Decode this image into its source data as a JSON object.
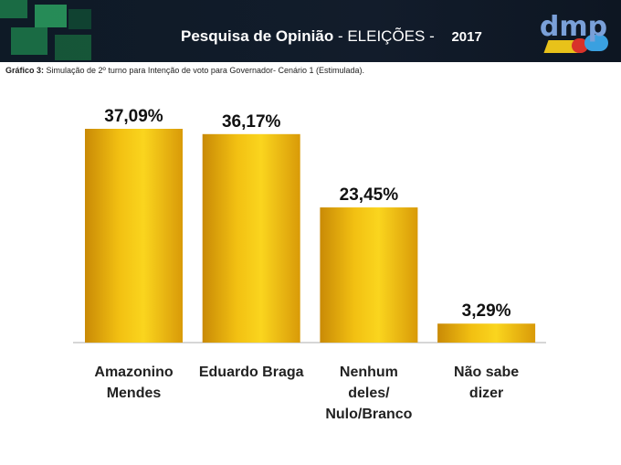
{
  "header": {
    "title_bold": "Pesquisa de Opinião",
    "title_rest": " - ELEIÇÕES - ",
    "year": "2017",
    "logo": "dmp"
  },
  "caption": {
    "label": "Gráfico 3:",
    "text": " Simulação de 2º turno para Intenção de voto para Governador- Cenário 1 (Estimulada)."
  },
  "colors": {
    "bar_light": "#f9d21a",
    "bar_dark": "#c98a06",
    "header": "#111b29"
  },
  "chart_data": {
    "type": "bar",
    "title": "Simulação de 2º turno para Intenção de voto para Governador- Cenário 1 (Estimulada)",
    "categories": [
      [
        "Amazonino",
        "Mendes"
      ],
      [
        "Eduardo Braga"
      ],
      [
        "Nenhum",
        "deles/",
        "Nulo/Branco"
      ],
      [
        "Não sabe",
        "dizer"
      ]
    ],
    "values": [
      37.09,
      36.17,
      23.45,
      3.29
    ],
    "value_labels": [
      "37,09%",
      "36,17%",
      "23,45%",
      "3,29%"
    ],
    "ylim": [
      0,
      40
    ],
    "grid": false,
    "xlabel": "",
    "ylabel": ""
  }
}
